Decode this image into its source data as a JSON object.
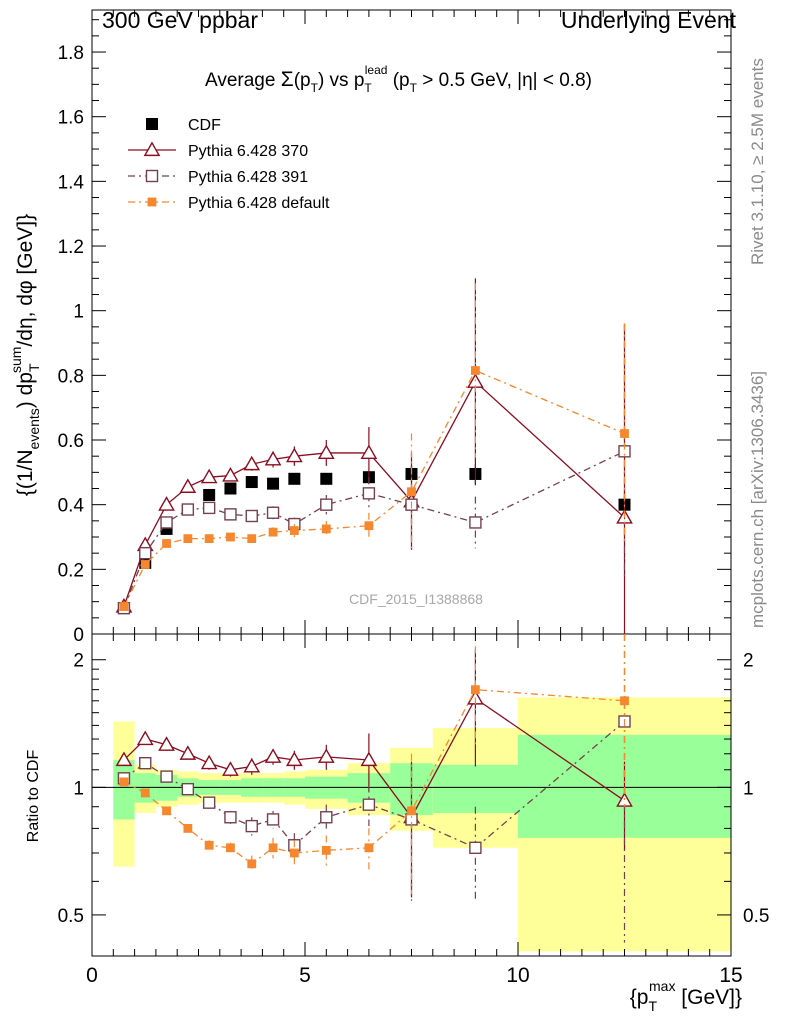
{
  "header": {
    "left": "300 GeV ppbar",
    "right": "Underlying Event"
  },
  "side_labels": {
    "top": "Rivet 3.1.10, ≥ 2.5M events",
    "bottom": "mcplots.cern.ch [arXiv:1306.3436]"
  },
  "watermark": "CDF_2015_I1388868",
  "colors": {
    "cdf": "#000000",
    "p370": "#8b0d1f",
    "p391": "#73424f",
    "pdef": "#f5872f",
    "band_green": "#99ff99",
    "band_yellow": "#ffff99"
  },
  "chart_data": {
    "type": "scatter",
    "title": "Average Σ(p_T) vs p_T^lead (p_T > 0.5 GeV, |η| < 0.8)",
    "ylabel": "{(1/N_events) dp_T^sum/dη, dφ [GeV]}",
    "xlabel": "{p_T^max [GeV]}",
    "ratio_ylabel": "Ratio to CDF",
    "xlim": [
      0,
      15
    ],
    "ylim": [
      0,
      1.93
    ],
    "ratio_ylim": [
      0.4,
      2.3
    ],
    "ratio_log": true,
    "x_ticks": [
      0,
      5,
      10,
      15
    ],
    "y_ticks": [
      0,
      0.2,
      0.4,
      0.6,
      0.8,
      1,
      1.2,
      1.4,
      1.6,
      1.8
    ],
    "ratio_ticks": [
      0.5,
      1,
      2
    ],
    "legend_position": "top-left",
    "x": [
      0.75,
      1.25,
      1.75,
      2.25,
      2.75,
      3.25,
      3.75,
      4.25,
      4.75,
      5.5,
      6.5,
      7.5,
      9.0,
      12.5
    ],
    "ratio_band_edges": [
      0.5,
      1.0,
      1.5,
      2.0,
      2.5,
      3.0,
      3.5,
      4.0,
      4.5,
      5.0,
      6.0,
      7.0,
      8.0,
      10.0,
      15.0
    ],
    "ratio_band_inner": [
      [
        0.84,
        1.16
      ],
      [
        0.92,
        1.08
      ],
      [
        0.93,
        1.07
      ],
      [
        0.95,
        1.05
      ],
      [
        0.96,
        1.04
      ],
      [
        0.96,
        1.04
      ],
      [
        0.95,
        1.05
      ],
      [
        0.95,
        1.05
      ],
      [
        0.95,
        1.05
      ],
      [
        0.94,
        1.06
      ],
      [
        0.92,
        1.08
      ],
      [
        0.86,
        1.14
      ],
      [
        0.87,
        1.13
      ],
      [
        0.76,
        1.33
      ]
    ],
    "ratio_band_outer": [
      [
        0.65,
        1.43
      ],
      [
        0.87,
        1.13
      ],
      [
        0.9,
        1.1
      ],
      [
        0.91,
        1.09
      ],
      [
        0.92,
        1.08
      ],
      [
        0.92,
        1.08
      ],
      [
        0.92,
        1.08
      ],
      [
        0.92,
        1.08
      ],
      [
        0.91,
        1.09
      ],
      [
        0.89,
        1.1
      ],
      [
        0.86,
        1.14
      ],
      [
        0.79,
        1.24
      ],
      [
        0.72,
        1.38
      ],
      [
        0.41,
        1.63
      ]
    ],
    "series": [
      {
        "name": "CDF",
        "style": "data",
        "values": [
          0.08,
          0.22,
          0.325,
          0.385,
          0.43,
          0.45,
          0.47,
          0.465,
          0.48,
          0.48,
          0.485,
          0.495,
          0.495,
          0.4
        ],
        "errors": [
          0,
          0.01,
          0.01,
          0.01,
          0.01,
          0.01,
          0.01,
          0.01,
          0.015,
          0.015,
          0.02,
          0.025,
          0.03,
          0.04
        ],
        "ratio": [
          1,
          1,
          1,
          1,
          1,
          1,
          1,
          1,
          1,
          1,
          1,
          1,
          1,
          1
        ]
      },
      {
        "name": "Pythia 6.428 370",
        "style": "solid",
        "marker": "triangle",
        "values": [
          0.085,
          0.275,
          0.4,
          0.455,
          0.485,
          0.49,
          0.525,
          0.54,
          0.55,
          0.56,
          0.56,
          0.41,
          0.78,
          0.36
        ],
        "errors": [
          0.005,
          0.01,
          0.01,
          0.01,
          0.015,
          0.015,
          0.02,
          0.025,
          0.03,
          0.04,
          0.08,
          0.15,
          0.32,
          0.6
        ],
        "ratio": [
          1.16,
          1.3,
          1.26,
          1.2,
          1.14,
          1.1,
          1.12,
          1.18,
          1.16,
          1.18,
          1.16,
          0.85,
          1.62,
          0.93
        ],
        "ratio_errors": [
          0.02,
          0.03,
          0.03,
          0.03,
          0.04,
          0.04,
          0.05,
          0.05,
          0.06,
          0.08,
          0.18,
          0.3,
          0.5,
          0.22
        ]
      },
      {
        "name": "Pythia 6.428 391",
        "style": "dashdot",
        "marker": "open-square",
        "values": [
          0.08,
          0.25,
          0.345,
          0.385,
          0.39,
          0.37,
          0.365,
          0.375,
          0.34,
          0.4,
          0.435,
          0.4,
          0.345,
          0.565
        ],
        "errors": [
          0.005,
          0.01,
          0.01,
          0.01,
          0.01,
          0.01,
          0.015,
          0.02,
          0.02,
          0.03,
          0.05,
          0.12,
          0.08,
          0.39
        ],
        "ratio": [
          1.05,
          1.14,
          1.06,
          0.99,
          0.92,
          0.85,
          0.81,
          0.84,
          0.73,
          0.85,
          0.91,
          0.84,
          0.72,
          1.43
        ],
        "ratio_errors": [
          0.02,
          0.03,
          0.03,
          0.03,
          0.03,
          0.03,
          0.04,
          0.04,
          0.05,
          0.06,
          0.1,
          0.3,
          0.18,
          1.0
        ]
      },
      {
        "name": "Pythia 6.428 default",
        "style": "dashdot",
        "marker": "filled-square",
        "values": [
          0.085,
          0.215,
          0.28,
          0.295,
          0.295,
          0.3,
          0.295,
          0.315,
          0.32,
          0.325,
          0.335,
          0.44,
          0.815,
          0.62
        ],
        "errors": [
          0.005,
          0.01,
          0.01,
          0.01,
          0.01,
          0.01,
          0.01,
          0.015,
          0.02,
          0.025,
          0.04,
          0.18,
          0.27,
          0.34
        ],
        "ratio": [
          1.03,
          0.97,
          0.88,
          0.8,
          0.73,
          0.72,
          0.66,
          0.72,
          0.7,
          0.71,
          0.72,
          0.88,
          1.7,
          1.6
        ],
        "ratio_errors": [
          0.02,
          0.02,
          0.02,
          0.02,
          0.02,
          0.02,
          0.03,
          0.04,
          0.05,
          0.06,
          0.08,
          0.32,
          0.45,
          0.7
        ]
      }
    ]
  }
}
